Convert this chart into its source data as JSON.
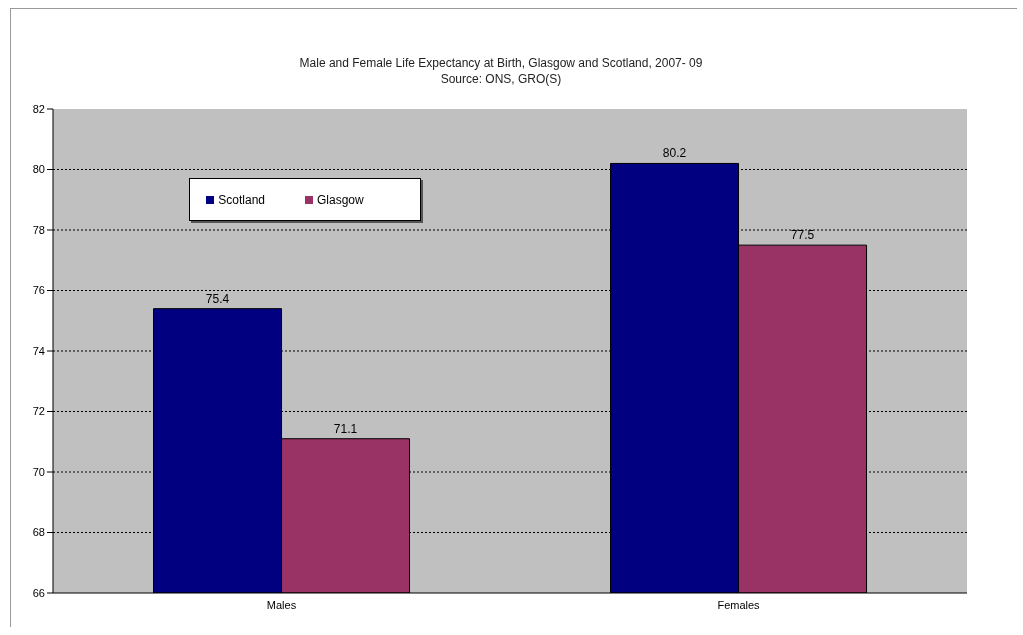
{
  "chart_data": {
    "type": "bar",
    "title": "Male and Female Life Expectancy at Birth, Glasgow and Scotland, 2007- 09",
    "annotations": [
      "Source: ONS, GRO(S)"
    ],
    "categories": [
      "Males",
      "Females"
    ],
    "series": [
      {
        "name": "Scotland",
        "color": "#000080",
        "values": [
          75.4,
          80.2
        ]
      },
      {
        "name": "Glasgow",
        "color": "#993366",
        "values": [
          71.1,
          77.5
        ]
      }
    ],
    "ylim": [
      66,
      82
    ],
    "yticks": [
      66,
      68,
      70,
      72,
      74,
      76,
      78,
      80,
      82
    ],
    "grid": "y",
    "legend": "top left",
    "data_labels": true
  }
}
